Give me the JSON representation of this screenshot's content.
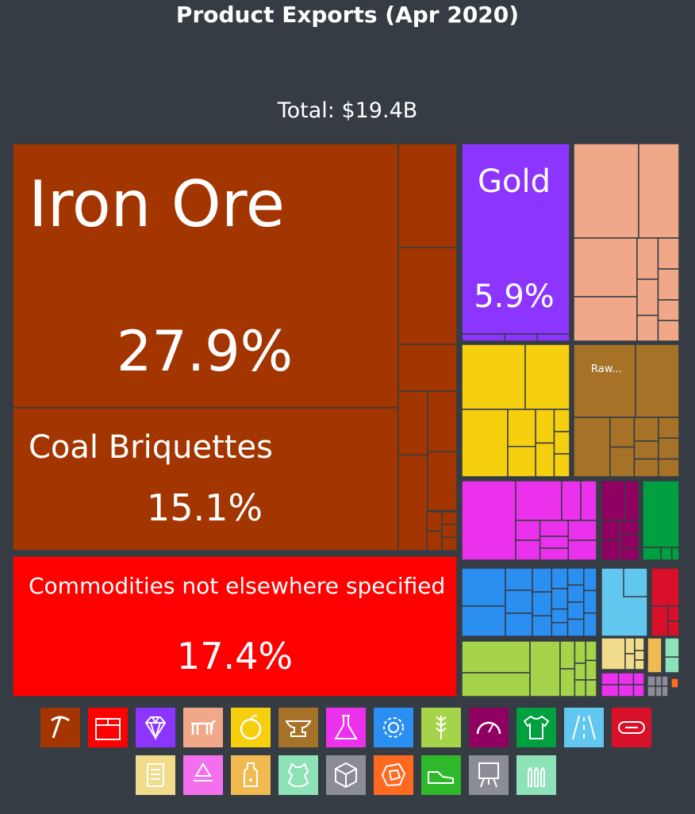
{
  "title": "Product Exports (Apr 2020)",
  "total_label": "Total: $19.4B",
  "chart_data": {
    "type": "treemap",
    "title": "Product Exports (Apr 2020)",
    "subtitle": "Total: $19.4B",
    "unit": "share of total exports (%)",
    "labeled_tiles": [
      {
        "name": "Iron Ore",
        "share_label": "27.9%",
        "value": 27.9,
        "category": "Mineral Products",
        "color": "#a33500"
      },
      {
        "name": "Coal Briquettes",
        "share_label": "15.1%",
        "value": 15.1,
        "category": "Mineral Products",
        "color": "#a33500"
      },
      {
        "name": "Commodities not elsewhere specified",
        "share_label": "17.4%",
        "value": 17.4,
        "category": "Miscellaneous",
        "color": "#ff0000"
      },
      {
        "name": "Gold",
        "share_label": "5.9%",
        "value": 5.9,
        "category": "Precious Metals",
        "color": "#8b35ff"
      },
      {
        "name": "Raw...",
        "share_label": "",
        "category": "Animal Hides",
        "color": "#a57228"
      }
    ],
    "category_colors": {
      "Mineral Products": "#a33500",
      "Miscellaneous": "#ff0000",
      "Precious Metals": "#8b35ff",
      "Animal Products": "#f0a888",
      "Vegetable Products": "#f6cf0e",
      "Animal Hides": "#a57228",
      "Chemical Products": "#ec31ec",
      "Instruments": "#900060",
      "Textiles": "#00a040",
      "Machines": "#2b8ff2",
      "Transportation": "#62c7ee",
      "Plastics and Rubbers": "#d8102a",
      "Foodstuffs": "#a5d34a",
      "Paper Goods": "#f0dc8a",
      "Stone And Glass": "#f0ba50",
      "Metals": "#8ee2b8",
      "Arts and Antiques": "#8c8c96",
      "Weapons": "#ff6a20"
    },
    "legend": [
      {
        "icon": "pickaxe-icon",
        "color": "#a33500"
      },
      {
        "icon": "box-icon",
        "color": "#ff0000"
      },
      {
        "icon": "diamond-icon",
        "color": "#8b35ff"
      },
      {
        "icon": "animal-icon",
        "color": "#f0a888"
      },
      {
        "icon": "fruit-icon",
        "color": "#f6cf0e"
      },
      {
        "icon": "anvil-icon",
        "color": "#a57228"
      },
      {
        "icon": "flask-icon",
        "color": "#ec31ec"
      },
      {
        "icon": "gear-icon",
        "color": "#2b8ff2"
      },
      {
        "icon": "wheat-icon",
        "color": "#a5d34a"
      },
      {
        "icon": "gauge-icon",
        "color": "#900060"
      },
      {
        "icon": "shirt-icon",
        "color": "#00a040"
      },
      {
        "icon": "road-icon",
        "color": "#62c7ee"
      },
      {
        "icon": "hose-icon",
        "color": "#d8102a"
      },
      {
        "icon": "scroll-icon",
        "color": "#f0dc8a"
      },
      {
        "icon": "recycle-icon",
        "color": "#f36fee"
      },
      {
        "icon": "bottle-icon",
        "color": "#f0ba50"
      },
      {
        "icon": "hide-icon",
        "color": "#8ee2b8"
      },
      {
        "icon": "cube-icon",
        "color": "#8c8c96"
      },
      {
        "icon": "stone-icon",
        "color": "#ff6a20"
      },
      {
        "icon": "shoe-icon",
        "color": "#2fb82a"
      },
      {
        "icon": "easel-icon",
        "color": "#8c8c96"
      },
      {
        "icon": "bullets-icon",
        "color": "#8ee2b8"
      }
    ]
  }
}
